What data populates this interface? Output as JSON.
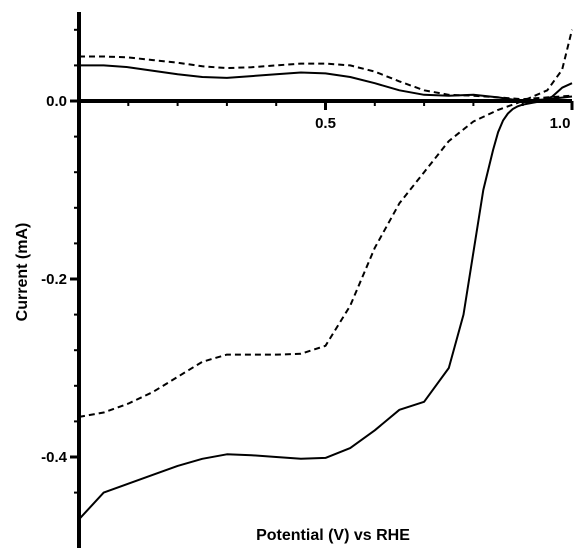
{
  "chart_data": {
    "type": "line",
    "xlabel": "Potential (V) vs RHE",
    "ylabel": "Current (mA)",
    "xlim": [
      0.0,
      1.0
    ],
    "ylim": [
      -0.48,
      0.1
    ],
    "x_ticks": [
      0.5,
      1.0
    ],
    "x_tick_labels": [
      "0.5",
      "1.0"
    ],
    "y_ticks": [
      0.0,
      -0.2,
      -0.4
    ],
    "y_tick_labels": [
      "0.0",
      "-0.2",
      "-0.4"
    ],
    "grid": false,
    "legend": false,
    "series": [
      {
        "style": "solid",
        "color": "#000000",
        "x": [
          0.0,
          0.05,
          0.1,
          0.15,
          0.2,
          0.25,
          0.3,
          0.35,
          0.4,
          0.45,
          0.5,
          0.55,
          0.6,
          0.65,
          0.7,
          0.75,
          0.78,
          0.8,
          0.82,
          0.84,
          0.85,
          0.86,
          0.87,
          0.88,
          0.89,
          0.9,
          0.92,
          0.94,
          0.96,
          0.98,
          1.0
        ],
        "y": [
          -0.47,
          -0.44,
          -0.43,
          -0.42,
          -0.41,
          -0.402,
          -0.397,
          -0.398,
          -0.4,
          -0.402,
          -0.401,
          -0.39,
          -0.37,
          -0.347,
          -0.338,
          -0.3,
          -0.24,
          -0.17,
          -0.1,
          -0.055,
          -0.035,
          -0.022,
          -0.014,
          -0.009,
          -0.006,
          -0.004,
          -0.002,
          0.0,
          0.005,
          0.015,
          0.02
        ]
      },
      {
        "style": "dashed",
        "color": "#000000",
        "x": [
          0.0,
          0.05,
          0.1,
          0.15,
          0.2,
          0.25,
          0.3,
          0.35,
          0.4,
          0.45,
          0.5,
          0.55,
          0.6,
          0.65,
          0.7,
          0.75,
          0.8,
          0.85,
          0.9,
          0.95,
          0.98,
          1.0
        ],
        "y": [
          -0.355,
          -0.35,
          -0.34,
          -0.327,
          -0.31,
          -0.293,
          -0.285,
          -0.285,
          -0.285,
          -0.284,
          -0.275,
          -0.23,
          -0.165,
          -0.115,
          -0.08,
          -0.045,
          -0.023,
          -0.01,
          0.0,
          0.012,
          0.035,
          0.08
        ]
      },
      {
        "style": "solid",
        "color": "#000000",
        "x": [
          0.0,
          0.05,
          0.1,
          0.15,
          0.2,
          0.25,
          0.3,
          0.35,
          0.4,
          0.45,
          0.5,
          0.55,
          0.6,
          0.65,
          0.7,
          0.75,
          0.8,
          0.85,
          0.9,
          0.95,
          1.0
        ],
        "y": [
          0.04,
          0.04,
          0.038,
          0.034,
          0.03,
          0.027,
          0.026,
          0.028,
          0.03,
          0.032,
          0.031,
          0.027,
          0.02,
          0.012,
          0.007,
          0.006,
          0.007,
          0.004,
          0.0,
          0.002,
          0.005
        ]
      },
      {
        "style": "dashed",
        "color": "#000000",
        "x": [
          0.0,
          0.05,
          0.1,
          0.15,
          0.2,
          0.25,
          0.3,
          0.35,
          0.4,
          0.45,
          0.5,
          0.55,
          0.6,
          0.65,
          0.7,
          0.75,
          0.8,
          0.85,
          0.9,
          0.95,
          1.0
        ],
        "y": [
          0.05,
          0.05,
          0.049,
          0.046,
          0.043,
          0.039,
          0.037,
          0.038,
          0.04,
          0.042,
          0.042,
          0.04,
          0.033,
          0.022,
          0.012,
          0.007,
          0.006,
          0.004,
          0.002,
          0.004,
          0.006
        ]
      }
    ]
  }
}
